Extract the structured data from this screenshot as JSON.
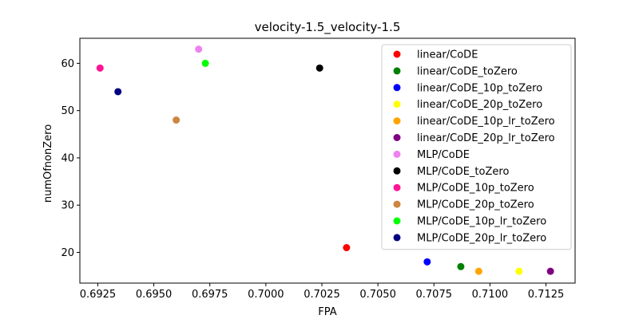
{
  "chart_data": {
    "type": "scatter",
    "title": "velocity-1.5_velocity-1.5",
    "xlabel": "FPA",
    "ylabel": "numOfnonZero",
    "xlim": [
      0.6917,
      0.7138
    ],
    "ylim": [
      13.5,
      65.3
    ],
    "xticks": [
      0.6925,
      0.695,
      0.6975,
      0.7,
      0.7025,
      0.705,
      0.7075,
      0.71,
      0.7125
    ],
    "xtick_labels": [
      "0.6925",
      "0.6950",
      "0.6975",
      "0.7000",
      "0.7025",
      "0.7050",
      "0.7075",
      "0.7100",
      "0.7125"
    ],
    "yticks": [
      20,
      30,
      40,
      50,
      60
    ],
    "ytick_labels": [
      "20",
      "30",
      "40",
      "50",
      "60"
    ],
    "grid": false,
    "legend_position": "top-right",
    "series": [
      {
        "name": "linear/CoDE",
        "color": "#ff0000",
        "x": [
          0.7036
        ],
        "y": [
          21
        ]
      },
      {
        "name": "linear/CoDE_toZero",
        "color": "#008000",
        "x": [
          0.7087
        ],
        "y": [
          17
        ]
      },
      {
        "name": "linear/CoDE_10p_toZero",
        "color": "#0000ff",
        "x": [
          0.7072
        ],
        "y": [
          18
        ]
      },
      {
        "name": "linear/CoDE_20p_toZero",
        "color": "#ffff00",
        "x": [
          0.7113
        ],
        "y": [
          16
        ]
      },
      {
        "name": "linear/CoDE_10p_lr_toZero",
        "color": "#ffa500",
        "x": [
          0.7095
        ],
        "y": [
          16
        ]
      },
      {
        "name": "linear/CoDE_20p_lr_toZero",
        "color": "#800080",
        "x": [
          0.7127
        ],
        "y": [
          16
        ]
      },
      {
        "name": "MLP/CoDE",
        "color": "#ee82ee",
        "x": [
          0.697
        ],
        "y": [
          63
        ]
      },
      {
        "name": "MLP/CoDE_toZero",
        "color": "#000000",
        "x": [
          0.7024
        ],
        "y": [
          59
        ]
      },
      {
        "name": "MLP/CoDE_10p_toZero",
        "color": "#ff1493",
        "x": [
          0.6926
        ],
        "y": [
          59
        ]
      },
      {
        "name": "MLP/CoDE_20p_toZero",
        "color": "#cd853f",
        "x": [
          0.696
        ],
        "y": [
          48
        ]
      },
      {
        "name": "MLP/CoDE_10p_lr_toZero",
        "color": "#00ff00",
        "x": [
          0.6973
        ],
        "y": [
          60
        ]
      },
      {
        "name": "MLP/CoDE_20p_lr_toZero",
        "color": "#000080",
        "x": [
          0.6934
        ],
        "y": [
          54
        ]
      }
    ]
  }
}
